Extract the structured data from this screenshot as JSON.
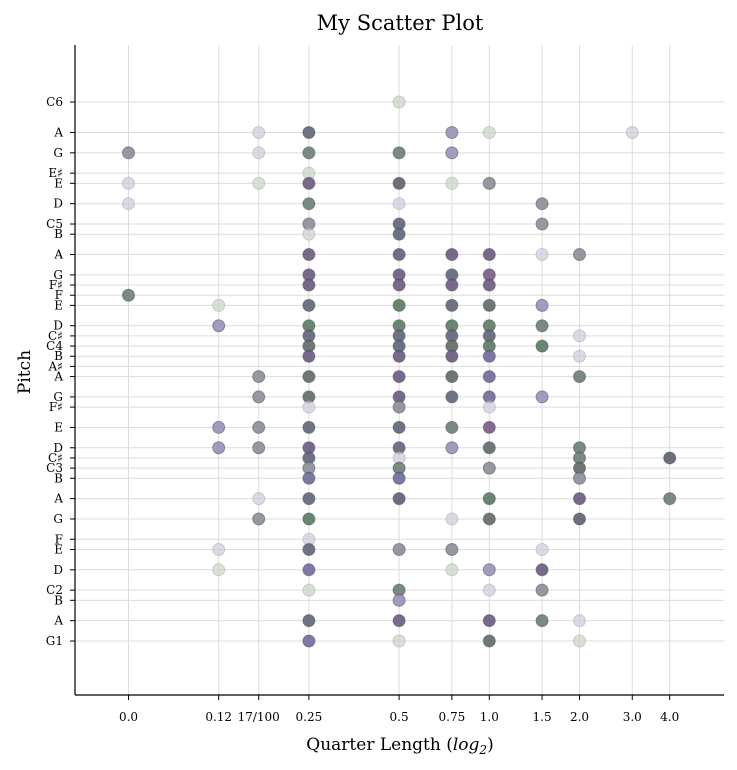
{
  "chart_data": {
    "type": "scatter",
    "title": "My Scatter Plot",
    "xlabel_main": "Quarter Length (",
    "xlabel_math": "log",
    "xlabel_sub": "2",
    "xlabel_end": ")",
    "ylabel": "Pitch",
    "x_scale": "log2",
    "x_ticks": [
      {
        "value": 0.0625,
        "label": "0.0"
      },
      {
        "value": 0.125,
        "label": "0.12"
      },
      {
        "value": 0.17,
        "label": "17/100"
      },
      {
        "value": 0.25,
        "label": "0.25"
      },
      {
        "value": 0.5,
        "label": "0.5"
      },
      {
        "value": 0.75,
        "label": "0.75"
      },
      {
        "value": 1.0,
        "label": "1.0"
      },
      {
        "value": 1.5,
        "label": "1.5"
      },
      {
        "value": 2.0,
        "label": "2.0"
      },
      {
        "value": 3.0,
        "label": "3.0"
      },
      {
        "value": 4.0,
        "label": "4.0"
      }
    ],
    "y_ticks": [
      {
        "midi": 43,
        "label": "G1"
      },
      {
        "midi": 45,
        "label": "A"
      },
      {
        "midi": 47,
        "label": "B"
      },
      {
        "midi": 48,
        "label": "C2"
      },
      {
        "midi": 50,
        "label": "D"
      },
      {
        "midi": 52,
        "label": "E"
      },
      {
        "midi": 53,
        "label": "F"
      },
      {
        "midi": 55,
        "label": "G"
      },
      {
        "midi": 57,
        "label": "A"
      },
      {
        "midi": 59,
        "label": "B"
      },
      {
        "midi": 60,
        "label": "C3"
      },
      {
        "midi": 61,
        "label": "C♯"
      },
      {
        "midi": 62,
        "label": "D"
      },
      {
        "midi": 64,
        "label": "E"
      },
      {
        "midi": 66,
        "label": "F♯"
      },
      {
        "midi": 67,
        "label": "G"
      },
      {
        "midi": 69,
        "label": "A"
      },
      {
        "midi": 70,
        "label": "A♯"
      },
      {
        "midi": 71,
        "label": "B"
      },
      {
        "midi": 72,
        "label": "C4"
      },
      {
        "midi": 73,
        "label": "C♯"
      },
      {
        "midi": 74,
        "label": "D"
      },
      {
        "midi": 76,
        "label": "E"
      },
      {
        "midi": 77,
        "label": "F"
      },
      {
        "midi": 78,
        "label": "F♯"
      },
      {
        "midi": 79,
        "label": "G"
      },
      {
        "midi": 81,
        "label": "A"
      },
      {
        "midi": 83,
        "label": "B"
      },
      {
        "midi": 84,
        "label": "C5"
      },
      {
        "midi": 86,
        "label": "D"
      },
      {
        "midi": 88,
        "label": "E"
      },
      {
        "midi": 89,
        "label": "E♯"
      },
      {
        "midi": 91,
        "label": "G"
      },
      {
        "midi": 93,
        "label": "A"
      },
      {
        "midi": 96,
        "label": "C6"
      }
    ],
    "ylim": [
      39.5,
      98
    ],
    "grid": true,
    "palette": {
      "light_purple": "#cfc9dc",
      "light_green": "#c8d6c2",
      "mid_purple": "#9b8fb8",
      "mid_gray": "#8a8e98",
      "slate": "#5e6578",
      "gray_green": "#6c7e76",
      "dark_purple": "#6a5a80",
      "green": "#5a7a60",
      "navy_gray": "#5c6070",
      "blue_purple": "#6e6a9c",
      "violet": "#7a5a86",
      "dark_gray": "#5e6a68"
    },
    "points": [
      {
        "x": 0.5,
        "y": 96,
        "c": "light_green"
      },
      {
        "x": 0.17,
        "y": 93,
        "c": "light_purple"
      },
      {
        "x": 0.25,
        "y": 93,
        "c": "slate"
      },
      {
        "x": 0.75,
        "y": 93,
        "c": "mid_purple"
      },
      {
        "x": 1.0,
        "y": 93,
        "c": "light_green"
      },
      {
        "x": 3.0,
        "y": 93,
        "c": "light_purple"
      },
      {
        "x": 0.0625,
        "y": 91,
        "c": "mid_gray"
      },
      {
        "x": 0.17,
        "y": 91,
        "c": "light_purple"
      },
      {
        "x": 0.25,
        "y": 91,
        "c": "gray_green"
      },
      {
        "x": 0.5,
        "y": 91,
        "c": "gray_green"
      },
      {
        "x": 0.75,
        "y": 91,
        "c": "mid_purple"
      },
      {
        "x": 0.25,
        "y": 89,
        "c": "light_green"
      },
      {
        "x": 0.0625,
        "y": 88,
        "c": "light_purple"
      },
      {
        "x": 0.17,
        "y": 88,
        "c": "light_green"
      },
      {
        "x": 0.25,
        "y": 88,
        "c": "dark_purple"
      },
      {
        "x": 0.5,
        "y": 88,
        "c": "navy_gray"
      },
      {
        "x": 0.75,
        "y": 88,
        "c": "light_green"
      },
      {
        "x": 1.0,
        "y": 88,
        "c": "mid_gray"
      },
      {
        "x": 0.0625,
        "y": 86,
        "c": "light_purple"
      },
      {
        "x": 0.25,
        "y": 86,
        "c": "gray_green"
      },
      {
        "x": 0.5,
        "y": 86,
        "c": "light_purple"
      },
      {
        "x": 1.5,
        "y": 86,
        "c": "mid_gray"
      },
      {
        "x": 0.25,
        "y": 84,
        "c": "mid_gray"
      },
      {
        "x": 0.5,
        "y": 84,
        "c": "slate"
      },
      {
        "x": 1.5,
        "y": 84,
        "c": "mid_gray"
      },
      {
        "x": 0.25,
        "y": 83,
        "c": "light_gray"
      },
      {
        "x": 0.5,
        "y": 83,
        "c": "slate"
      },
      {
        "x": 0.25,
        "y": 81,
        "c": "dark_purple"
      },
      {
        "x": 0.5,
        "y": 81,
        "c": "dark_purple"
      },
      {
        "x": 0.75,
        "y": 81,
        "c": "dark_purple"
      },
      {
        "x": 1.0,
        "y": 81,
        "c": "dark_purple"
      },
      {
        "x": 1.5,
        "y": 81,
        "c": "light_purple"
      },
      {
        "x": 2.0,
        "y": 81,
        "c": "mid_gray"
      },
      {
        "x": 0.25,
        "y": 79,
        "c": "dark_purple"
      },
      {
        "x": 0.5,
        "y": 79,
        "c": "dark_purple"
      },
      {
        "x": 0.75,
        "y": 79,
        "c": "slate"
      },
      {
        "x": 1.0,
        "y": 79,
        "c": "violet"
      },
      {
        "x": 0.25,
        "y": 78,
        "c": "dark_purple"
      },
      {
        "x": 0.5,
        "y": 78,
        "c": "dark_purple"
      },
      {
        "x": 0.75,
        "y": 78,
        "c": "dark_purple"
      },
      {
        "x": 1.0,
        "y": 78,
        "c": "dark_purple"
      },
      {
        "x": 0.0625,
        "y": 77,
        "c": "gray_green"
      },
      {
        "x": 0.125,
        "y": 76,
        "c": "light_green"
      },
      {
        "x": 0.25,
        "y": 76,
        "c": "slate"
      },
      {
        "x": 0.5,
        "y": 76,
        "c": "green"
      },
      {
        "x": 0.75,
        "y": 76,
        "c": "slate"
      },
      {
        "x": 1.0,
        "y": 76,
        "c": "dark_gray"
      },
      {
        "x": 1.5,
        "y": 76,
        "c": "mid_purple"
      },
      {
        "x": 0.125,
        "y": 74,
        "c": "mid_purple"
      },
      {
        "x": 0.25,
        "y": 74,
        "c": "green"
      },
      {
        "x": 0.5,
        "y": 74,
        "c": "green"
      },
      {
        "x": 0.75,
        "y": 74,
        "c": "green"
      },
      {
        "x": 1.0,
        "y": 74,
        "c": "green"
      },
      {
        "x": 1.5,
        "y": 74,
        "c": "gray_green"
      },
      {
        "x": 0.25,
        "y": 73,
        "c": "slate"
      },
      {
        "x": 0.5,
        "y": 73,
        "c": "slate"
      },
      {
        "x": 0.75,
        "y": 73,
        "c": "slate"
      },
      {
        "x": 1.0,
        "y": 73,
        "c": "slate"
      },
      {
        "x": 2.0,
        "y": 73,
        "c": "light_purple"
      },
      {
        "x": 0.25,
        "y": 72,
        "c": "dark_gray"
      },
      {
        "x": 0.5,
        "y": 72,
        "c": "slate"
      },
      {
        "x": 0.75,
        "y": 72,
        "c": "dark_gray"
      },
      {
        "x": 1.0,
        "y": 72,
        "c": "green"
      },
      {
        "x": 1.5,
        "y": 72,
        "c": "green"
      },
      {
        "x": 0.25,
        "y": 71,
        "c": "dark_purple"
      },
      {
        "x": 0.5,
        "y": 71,
        "c": "dark_purple"
      },
      {
        "x": 0.75,
        "y": 71,
        "c": "dark_purple"
      },
      {
        "x": 1.0,
        "y": 71,
        "c": "blue_purple"
      },
      {
        "x": 2.0,
        "y": 71,
        "c": "light_purple"
      },
      {
        "x": 0.17,
        "y": 69,
        "c": "mid_gray"
      },
      {
        "x": 0.25,
        "y": 69,
        "c": "dark_gray"
      },
      {
        "x": 0.5,
        "y": 69,
        "c": "dark_purple"
      },
      {
        "x": 0.75,
        "y": 69,
        "c": "dark_gray"
      },
      {
        "x": 1.0,
        "y": 69,
        "c": "blue_purple"
      },
      {
        "x": 2.0,
        "y": 69,
        "c": "gray_green"
      },
      {
        "x": 0.17,
        "y": 67,
        "c": "mid_gray"
      },
      {
        "x": 0.25,
        "y": 67,
        "c": "dark_gray"
      },
      {
        "x": 0.5,
        "y": 67,
        "c": "dark_purple"
      },
      {
        "x": 0.75,
        "y": 67,
        "c": "slate"
      },
      {
        "x": 1.0,
        "y": 67,
        "c": "blue_purple"
      },
      {
        "x": 1.5,
        "y": 67,
        "c": "mid_purple"
      },
      {
        "x": 0.25,
        "y": 66,
        "c": "light_purple"
      },
      {
        "x": 0.5,
        "y": 66,
        "c": "mid_gray"
      },
      {
        "x": 1.0,
        "y": 66,
        "c": "light_purple"
      },
      {
        "x": 0.125,
        "y": 64,
        "c": "mid_purple"
      },
      {
        "x": 0.17,
        "y": 64,
        "c": "mid_gray"
      },
      {
        "x": 0.25,
        "y": 64,
        "c": "slate"
      },
      {
        "x": 0.5,
        "y": 64,
        "c": "slate"
      },
      {
        "x": 0.75,
        "y": 64,
        "c": "gray_green"
      },
      {
        "x": 1.0,
        "y": 64,
        "c": "violet"
      },
      {
        "x": 0.125,
        "y": 62,
        "c": "mid_purple"
      },
      {
        "x": 0.17,
        "y": 62,
        "c": "mid_gray"
      },
      {
        "x": 0.25,
        "y": 62,
        "c": "dark_purple"
      },
      {
        "x": 0.5,
        "y": 62,
        "c": "slate"
      },
      {
        "x": 0.75,
        "y": 62,
        "c": "mid_purple"
      },
      {
        "x": 1.0,
        "y": 62,
        "c": "dark_gray"
      },
      {
        "x": 2.0,
        "y": 62,
        "c": "gray_green"
      },
      {
        "x": 0.25,
        "y": 61,
        "c": "slate"
      },
      {
        "x": 0.5,
        "y": 61,
        "c": "light_purple"
      },
      {
        "x": 2.0,
        "y": 61,
        "c": "gray_green"
      },
      {
        "x": 4.0,
        "y": 61,
        "c": "navy_gray"
      },
      {
        "x": 0.25,
        "y": 60,
        "c": "mid_gray"
      },
      {
        "x": 0.5,
        "y": 60,
        "c": "gray_green"
      },
      {
        "x": 1.0,
        "y": 60,
        "c": "mid_gray"
      },
      {
        "x": 2.0,
        "y": 60,
        "c": "dark_gray"
      },
      {
        "x": 0.25,
        "y": 59,
        "c": "blue_purple"
      },
      {
        "x": 0.5,
        "y": 59,
        "c": "blue_purple"
      },
      {
        "x": 2.0,
        "y": 59,
        "c": "mid_gray"
      },
      {
        "x": 0.17,
        "y": 57,
        "c": "light_purple"
      },
      {
        "x": 0.25,
        "y": 57,
        "c": "slate"
      },
      {
        "x": 0.5,
        "y": 57,
        "c": "navy_gray"
      },
      {
        "x": 1.0,
        "y": 57,
        "c": "green"
      },
      {
        "x": 2.0,
        "y": 57,
        "c": "dark_purple"
      },
      {
        "x": 4.0,
        "y": 57,
        "c": "gray_green"
      },
      {
        "x": 0.17,
        "y": 55,
        "c": "mid_gray"
      },
      {
        "x": 0.25,
        "y": 55,
        "c": "green"
      },
      {
        "x": 0.75,
        "y": 55,
        "c": "light_purple"
      },
      {
        "x": 1.0,
        "y": 55,
        "c": "dark_gray"
      },
      {
        "x": 2.0,
        "y": 55,
        "c": "navy_gray"
      },
      {
        "x": 0.25,
        "y": 53,
        "c": "light_purple"
      },
      {
        "x": 0.125,
        "y": 52,
        "c": "light_purple"
      },
      {
        "x": 0.25,
        "y": 52,
        "c": "slate"
      },
      {
        "x": 0.5,
        "y": 52,
        "c": "mid_gray"
      },
      {
        "x": 0.75,
        "y": 52,
        "c": "mid_gray"
      },
      {
        "x": 1.5,
        "y": 52,
        "c": "light_purple"
      },
      {
        "x": 0.125,
        "y": 50,
        "c": "light_green"
      },
      {
        "x": 0.25,
        "y": 50,
        "c": "blue_purple"
      },
      {
        "x": 0.75,
        "y": 50,
        "c": "light_green"
      },
      {
        "x": 1.0,
        "y": 50,
        "c": "mid_purple"
      },
      {
        "x": 1.5,
        "y": 50,
        "c": "dark_purple"
      },
      {
        "x": 0.25,
        "y": 48,
        "c": "light_green"
      },
      {
        "x": 0.5,
        "y": 48,
        "c": "gray_green"
      },
      {
        "x": 1.0,
        "y": 48,
        "c": "light_purple"
      },
      {
        "x": 1.5,
        "y": 48,
        "c": "mid_gray"
      },
      {
        "x": 0.5,
        "y": 47,
        "c": "mid_purple"
      },
      {
        "x": 0.25,
        "y": 45,
        "c": "slate"
      },
      {
        "x": 0.5,
        "y": 45,
        "c": "dark_purple"
      },
      {
        "x": 1.0,
        "y": 45,
        "c": "dark_purple"
      },
      {
        "x": 1.5,
        "y": 45,
        "c": "gray_green"
      },
      {
        "x": 2.0,
        "y": 45,
        "c": "light_purple"
      },
      {
        "x": 0.25,
        "y": 43,
        "c": "blue_purple"
      },
      {
        "x": 0.5,
        "y": 43,
        "c": "light_green"
      },
      {
        "x": 1.0,
        "y": 43,
        "c": "dark_gray"
      },
      {
        "x": 2.0,
        "y": 43,
        "c": "light_green"
      }
    ]
  }
}
